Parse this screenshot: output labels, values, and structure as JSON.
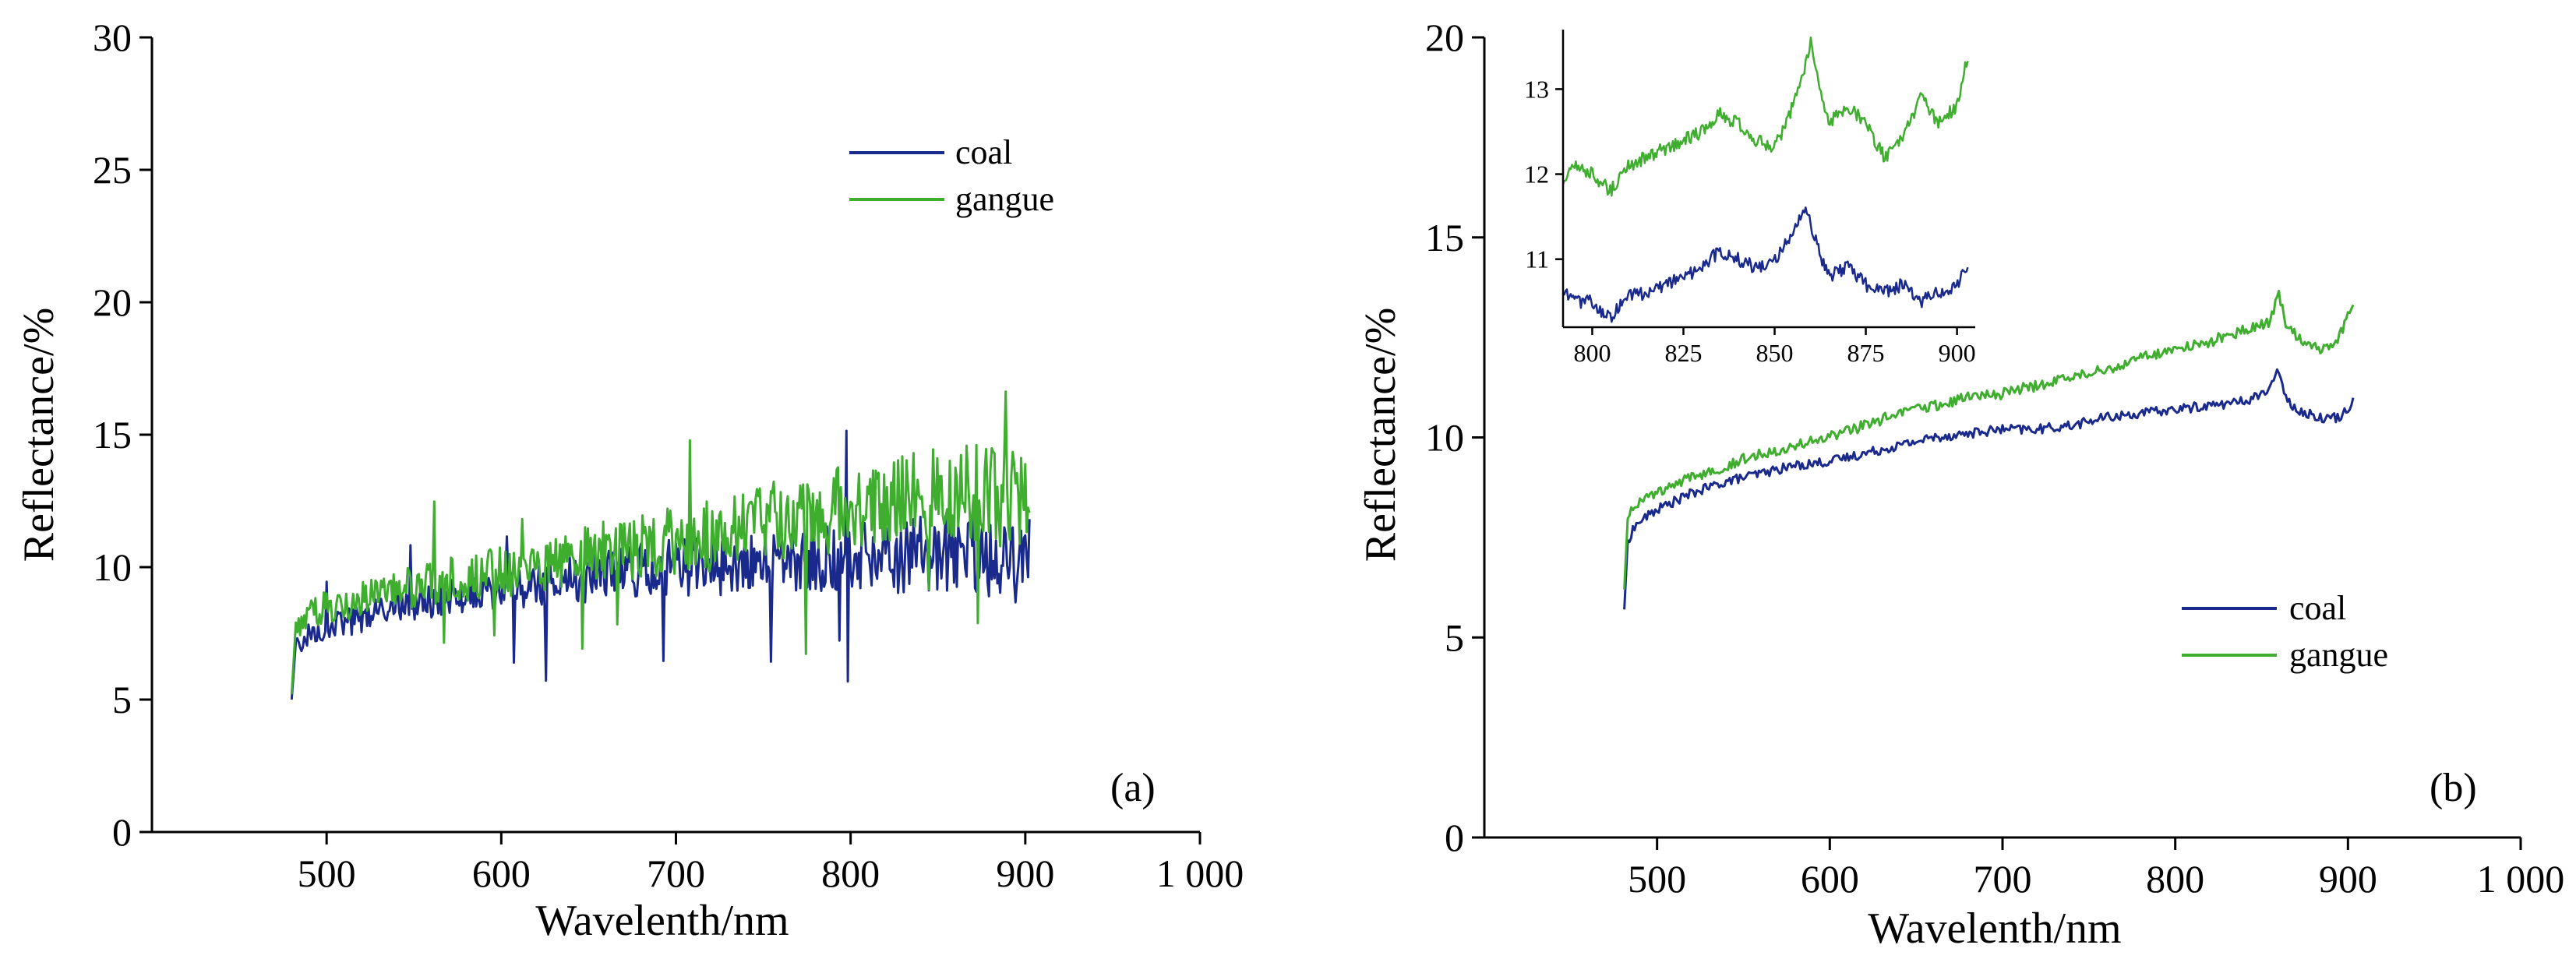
{
  "figure": {
    "colors": {
      "coal": "#1a2a8c",
      "gangue": "#3fae2f",
      "axis": "#000000"
    }
  },
  "chart_data": [
    {
      "type": "line",
      "panel_label": "(a)",
      "xlabel": "Wavelenth/nm",
      "ylabel": "Reflectance/%",
      "xlim": [
        400,
        1000
      ],
      "ylim": [
        0,
        30
      ],
      "xticks": [
        500,
        600,
        700,
        800,
        900,
        1000
      ],
      "xtick_labels": [
        "500",
        "600",
        "700",
        "800",
        "900",
        "1 000"
      ],
      "yticks": [
        0,
        5,
        10,
        15,
        20,
        25,
        30
      ],
      "ytick_labels": [
        "0",
        "5",
        "10",
        "15",
        "20",
        "25",
        "30"
      ],
      "grid": false,
      "legend_position": "top-right",
      "noise": "high",
      "series": [
        {
          "name": "coal",
          "color": "#1a2a8c",
          "x": [
            480,
            482,
            485,
            490,
            495,
            500,
            520,
            540,
            560,
            580,
            600,
            620,
            640,
            660,
            680,
            700,
            720,
            740,
            760,
            780,
            800,
            820,
            840,
            860,
            875,
            880,
            890,
            895,
            900,
            903
          ],
          "y": [
            5.0,
            6.8,
            7.2,
            7.5,
            7.6,
            7.7,
            8.1,
            8.5,
            8.7,
            8.9,
            9.1,
            9.3,
            9.5,
            9.7,
            9.9,
            10.0,
            10.0,
            10.1,
            10.2,
            10.3,
            10.4,
            10.4,
            10.5,
            10.6,
            10.5,
            10.4,
            10.3,
            10.2,
            10.2,
            10.3
          ]
        },
        {
          "name": "gangue",
          "color": "#3fae2f",
          "x": [
            480,
            482,
            485,
            490,
            495,
            500,
            520,
            540,
            560,
            580,
            600,
            620,
            640,
            660,
            680,
            700,
            720,
            740,
            760,
            780,
            800,
            820,
            840,
            860,
            875,
            880,
            890,
            895,
            900,
            903
          ],
          "y": [
            5.2,
            7.4,
            7.9,
            8.2,
            8.4,
            8.5,
            8.8,
            9.1,
            9.4,
            9.6,
            9.8,
            10.1,
            10.3,
            10.6,
            10.8,
            11.0,
            11.2,
            11.5,
            11.8,
            12.0,
            12.3,
            12.5,
            12.7,
            13.0,
            12.8,
            12.6,
            12.5,
            12.6,
            12.8,
            13.2
          ]
        }
      ]
    },
    {
      "type": "line",
      "panel_label": "(b)",
      "xlabel": "Wavelenth/nm",
      "ylabel": "Reflectance/%",
      "xlim": [
        400,
        1000
      ],
      "ylim": [
        0,
        20
      ],
      "xticks": [
        500,
        600,
        700,
        800,
        900,
        1000
      ],
      "xtick_labels": [
        "500",
        "600",
        "700",
        "800",
        "900",
        "1 000"
      ],
      "yticks": [
        0,
        5,
        10,
        15,
        20
      ],
      "ytick_labels": [
        "0",
        "5",
        "10",
        "15",
        "20"
      ],
      "grid": false,
      "legend_position": "bottom-right",
      "noise": "low",
      "series": [
        {
          "name": "coal",
          "color": "#1a2a8c",
          "x": [
            481,
            483,
            486,
            490,
            500,
            520,
            540,
            560,
            580,
            600,
            620,
            640,
            660,
            680,
            700,
            720,
            740,
            760,
            780,
            800,
            820,
            840,
            855,
            860,
            865,
            875,
            885,
            895,
            903
          ],
          "y": [
            5.7,
            7.4,
            7.7,
            7.9,
            8.2,
            8.6,
            8.9,
            9.1,
            9.3,
            9.4,
            9.6,
            9.8,
            10.0,
            10.1,
            10.2,
            10.2,
            10.3,
            10.5,
            10.6,
            10.7,
            10.8,
            10.9,
            11.2,
            11.7,
            10.9,
            10.6,
            10.5,
            10.5,
            10.9
          ]
        },
        {
          "name": "gangue",
          "color": "#3fae2f",
          "x": [
            481,
            483,
            486,
            490,
            500,
            520,
            540,
            560,
            580,
            600,
            620,
            640,
            660,
            680,
            700,
            720,
            740,
            760,
            780,
            800,
            820,
            840,
            855,
            860,
            865,
            875,
            885,
            895,
            903
          ],
          "y": [
            6.2,
            8.0,
            8.3,
            8.4,
            8.6,
            9.0,
            9.3,
            9.6,
            9.8,
            10.0,
            10.3,
            10.6,
            10.8,
            11.0,
            11.1,
            11.3,
            11.5,
            11.7,
            12.0,
            12.2,
            12.4,
            12.7,
            12.9,
            13.6,
            12.7,
            12.4,
            12.2,
            12.5,
            13.4
          ]
        }
      ],
      "inset": {
        "xlim": [
          792,
          905
        ],
        "ylim": [
          10.2,
          13.7
        ],
        "xticks": [
          800,
          825,
          850,
          875,
          900
        ],
        "xtick_labels": [
          "800",
          "825",
          "850",
          "875",
          "900"
        ],
        "yticks": [
          11,
          12,
          13
        ],
        "ytick_labels": [
          "11",
          "12",
          "13"
        ],
        "series": [
          {
            "name": "coal",
            "color": "#1a2a8c",
            "x": [
              792,
              795,
              800,
              805,
              810,
              815,
              820,
              825,
              830,
              835,
              840,
              845,
              850,
              855,
              858,
              860,
              862,
              865,
              870,
              875,
              880,
              885,
              890,
              895,
              900,
              903
            ],
            "y": [
              10.6,
              10.5,
              10.5,
              10.3,
              10.6,
              10.6,
              10.7,
              10.8,
              10.9,
              11.1,
              11.0,
              10.9,
              11.0,
              11.3,
              11.6,
              11.4,
              11.1,
              10.8,
              10.9,
              10.7,
              10.6,
              10.7,
              10.5,
              10.6,
              10.7,
              10.9
            ]
          },
          {
            "name": "gangue",
            "color": "#3fae2f",
            "x": [
              792,
              795,
              800,
              805,
              810,
              815,
              820,
              825,
              830,
              835,
              840,
              845,
              850,
              855,
              858,
              860,
              862,
              865,
              870,
              875,
              880,
              885,
              890,
              895,
              900,
              903
            ],
            "y": [
              11.9,
              12.1,
              12.0,
              11.8,
              12.1,
              12.2,
              12.3,
              12.4,
              12.5,
              12.7,
              12.6,
              12.4,
              12.3,
              12.8,
              13.2,
              13.6,
              13.1,
              12.6,
              12.8,
              12.6,
              12.2,
              12.4,
              12.9,
              12.6,
              12.8,
              13.4
            ]
          }
        ]
      }
    }
  ]
}
